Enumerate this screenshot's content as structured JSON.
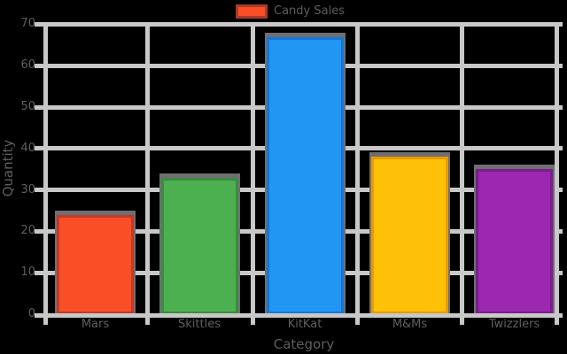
{
  "chart_data": {
    "type": "bar",
    "categories": [
      "Mars",
      "Skittles",
      "KitKat",
      "M&Ms",
      "Twizzlers"
    ],
    "values": [
      24,
      33,
      67,
      38,
      35
    ],
    "series_label": "Candy Sales",
    "xlabel": "Category",
    "ylabel": "Quantity",
    "yticks": [
      0,
      10,
      20,
      30,
      40,
      50,
      60,
      70
    ],
    "ylim": [
      0,
      75
    ],
    "grid": true,
    "legend_position": "top-center",
    "bars": [
      {
        "fill": "#fa4f26",
        "edge": "#c13a2a"
      },
      {
        "fill": "#4caf50",
        "edge": "#3d8b40"
      },
      {
        "fill": "#2196f3",
        "edge": "#1976d2"
      },
      {
        "fill": "#ffc107",
        "edge": "#e89b00"
      },
      {
        "fill": "#9c27b0",
        "edge": "#7a1d8d"
      }
    ],
    "legend_swatch": {
      "fill": "#fa4f26",
      "edge": "#a93b2b"
    },
    "shadow_color": "#6f6f72",
    "grid_color": "#c8c8c8",
    "text_color": "#5e5e5e",
    "background": "#000000"
  }
}
